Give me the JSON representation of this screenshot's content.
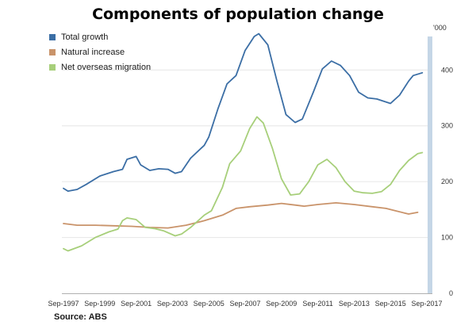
{
  "chart_data": {
    "type": "line",
    "title": "Components of population change",
    "unit_label": "'000",
    "source": "Source: ABS",
    "x_tick_labels": [
      "Sep-1997",
      "Sep-1999",
      "Sep-2001",
      "Sep-2003",
      "Sep-2005",
      "Sep-2007",
      "Sep-2009",
      "Sep-2011",
      "Sep-2013",
      "Sep-2015",
      "Sep-2017"
    ],
    "y_ticks": [
      0,
      100,
      200,
      300,
      400
    ],
    "ylim": [
      0,
      460
    ],
    "x_range": [
      1997.75,
      2017.75
    ],
    "grid": true,
    "legend_position": "top-left",
    "series": [
      {
        "name": "Total growth",
        "color": "#3b6ea5",
        "points": [
          [
            1997.75,
            188
          ],
          [
            1998.0,
            183
          ],
          [
            1998.5,
            186
          ],
          [
            1999.0,
            195
          ],
          [
            1999.75,
            210
          ],
          [
            2000.5,
            218
          ],
          [
            2001.0,
            222
          ],
          [
            2001.25,
            240
          ],
          [
            2001.75,
            245
          ],
          [
            2002.0,
            230
          ],
          [
            2002.5,
            220
          ],
          [
            2003.0,
            223
          ],
          [
            2003.5,
            222
          ],
          [
            2003.9,
            215
          ],
          [
            2004.25,
            218
          ],
          [
            2004.75,
            242
          ],
          [
            2005.5,
            265
          ],
          [
            2005.75,
            280
          ],
          [
            2006.25,
            330
          ],
          [
            2006.75,
            375
          ],
          [
            2007.25,
            390
          ],
          [
            2007.75,
            435
          ],
          [
            2008.25,
            460
          ],
          [
            2008.5,
            465
          ],
          [
            2009.0,
            445
          ],
          [
            2009.5,
            380
          ],
          [
            2010.0,
            320
          ],
          [
            2010.5,
            306
          ],
          [
            2010.9,
            312
          ],
          [
            2011.5,
            360
          ],
          [
            2012.0,
            402
          ],
          [
            2012.5,
            416
          ],
          [
            2013.0,
            408
          ],
          [
            2013.5,
            390
          ],
          [
            2014.0,
            360
          ],
          [
            2014.5,
            350
          ],
          [
            2015.0,
            348
          ],
          [
            2015.75,
            340
          ],
          [
            2016.25,
            355
          ],
          [
            2016.75,
            380
          ],
          [
            2017.0,
            390
          ],
          [
            2017.5,
            395
          ]
        ]
      },
      {
        "name": "Natural increase",
        "color": "#c9936a",
        "points": [
          [
            1997.75,
            125
          ],
          [
            1998.5,
            122
          ],
          [
            1999.5,
            122
          ],
          [
            2000.5,
            121
          ],
          [
            2001.5,
            120
          ],
          [
            2002.5,
            118
          ],
          [
            2003.5,
            117
          ],
          [
            2004.5,
            122
          ],
          [
            2005.5,
            130
          ],
          [
            2006.5,
            140
          ],
          [
            2007.25,
            152
          ],
          [
            2008.0,
            155
          ],
          [
            2009.0,
            158
          ],
          [
            2009.75,
            161
          ],
          [
            2010.5,
            158
          ],
          [
            2011.0,
            156
          ],
          [
            2011.75,
            159
          ],
          [
            2012.75,
            162
          ],
          [
            2013.75,
            159
          ],
          [
            2014.75,
            155
          ],
          [
            2015.5,
            152
          ],
          [
            2016.0,
            148
          ],
          [
            2016.75,
            142
          ],
          [
            2017.25,
            145
          ]
        ]
      },
      {
        "name": "Net overseas migration",
        "color": "#a7cf7a",
        "points": [
          [
            1997.75,
            80
          ],
          [
            1998.0,
            76
          ],
          [
            1998.75,
            85
          ],
          [
            1999.5,
            100
          ],
          [
            2000.25,
            110
          ],
          [
            2000.75,
            115
          ],
          [
            2001.0,
            130
          ],
          [
            2001.25,
            135
          ],
          [
            2001.75,
            132
          ],
          [
            2002.25,
            118
          ],
          [
            2002.75,
            116
          ],
          [
            2003.25,
            112
          ],
          [
            2003.9,
            103
          ],
          [
            2004.25,
            106
          ],
          [
            2004.75,
            118
          ],
          [
            2005.5,
            140
          ],
          [
            2005.9,
            148
          ],
          [
            2006.5,
            190
          ],
          [
            2006.9,
            232
          ],
          [
            2007.5,
            255
          ],
          [
            2008.0,
            295
          ],
          [
            2008.4,
            316
          ],
          [
            2008.75,
            305
          ],
          [
            2009.25,
            260
          ],
          [
            2009.75,
            205
          ],
          [
            2010.25,
            176
          ],
          [
            2010.75,
            178
          ],
          [
            2011.25,
            200
          ],
          [
            2011.75,
            230
          ],
          [
            2012.25,
            240
          ],
          [
            2012.75,
            225
          ],
          [
            2013.25,
            200
          ],
          [
            2013.75,
            183
          ],
          [
            2014.25,
            180
          ],
          [
            2014.75,
            179
          ],
          [
            2015.25,
            182
          ],
          [
            2015.75,
            195
          ],
          [
            2016.25,
            220
          ],
          [
            2016.75,
            238
          ],
          [
            2017.25,
            250
          ],
          [
            2017.5,
            252
          ]
        ]
      }
    ]
  }
}
